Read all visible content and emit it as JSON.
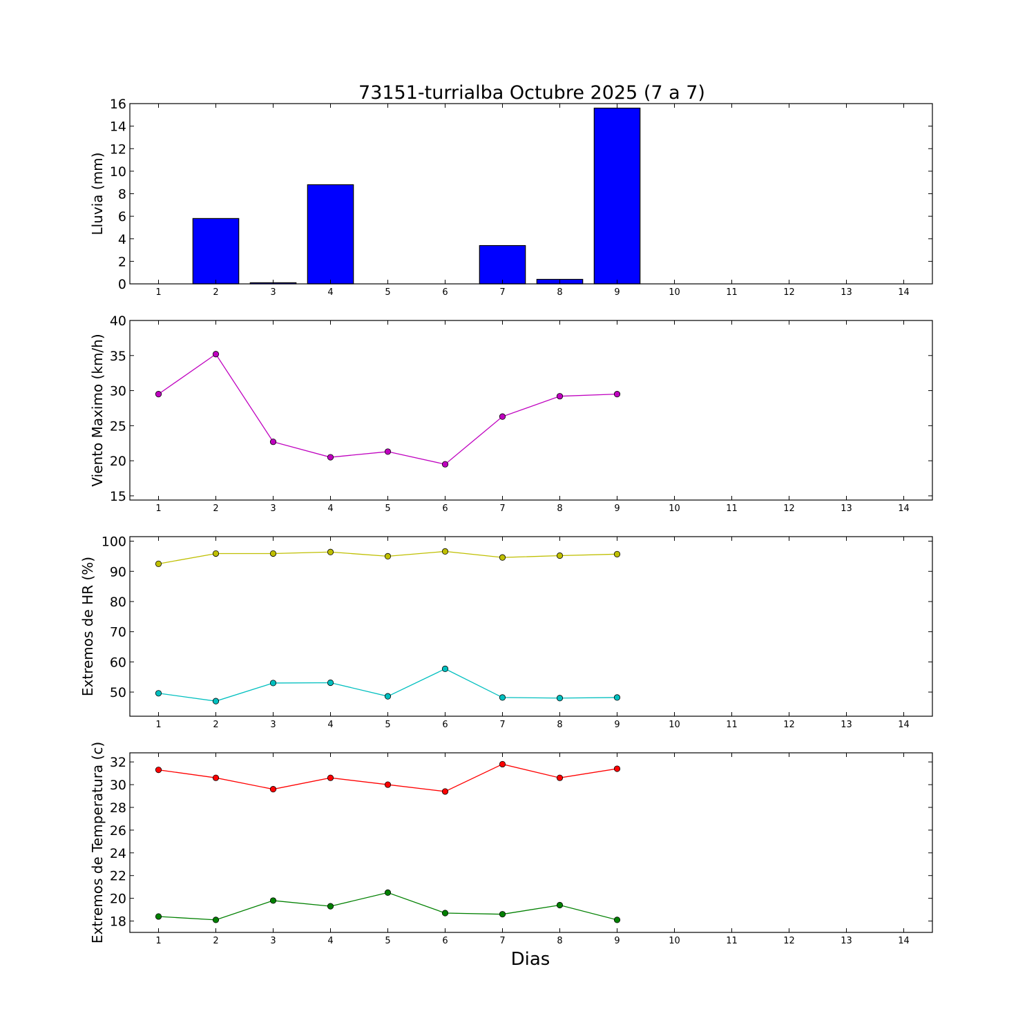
{
  "title": "73151-turrialba Octubre 2025  (7 a 7)",
  "xlabel": "Dias",
  "chart_data": [
    {
      "type": "bar",
      "ylabel": "Lluvia (mm)",
      "xlim": [
        0.5,
        14.5
      ],
      "ylim": [
        0,
        16
      ],
      "xticks": [
        1,
        2,
        3,
        4,
        5,
        6,
        7,
        8,
        9,
        10,
        11,
        12,
        13,
        14
      ],
      "yticks": [
        0,
        2,
        4,
        6,
        8,
        10,
        12,
        14,
        16
      ],
      "grid": false,
      "series": [
        {
          "color": "#0000ff",
          "x": [
            1,
            2,
            3,
            4,
            5,
            6,
            7,
            8,
            9
          ],
          "values": [
            0,
            5.8,
            0.1,
            8.8,
            0,
            0,
            3.4,
            0.4,
            15.6
          ]
        }
      ]
    },
    {
      "type": "line",
      "ylabel": "Viento Maximo (km/h)",
      "xlim": [
        0.5,
        14.5
      ],
      "ylim": [
        14.4,
        40
      ],
      "xticks": [
        1,
        2,
        3,
        4,
        5,
        6,
        7,
        8,
        9,
        10,
        11,
        12,
        13,
        14
      ],
      "yticks": [
        15,
        20,
        25,
        30,
        35,
        40
      ],
      "grid": false,
      "series": [
        {
          "color": "#bf00bf",
          "x": [
            1,
            2,
            3,
            4,
            5,
            6,
            7,
            8,
            9
          ],
          "values": [
            29.5,
            35.2,
            22.7,
            20.5,
            21.3,
            19.5,
            26.3,
            29.2,
            29.5
          ]
        }
      ]
    },
    {
      "type": "line",
      "ylabel": "Extremos de HR (%)",
      "xlim": [
        0.5,
        14.5
      ],
      "ylim": [
        42,
        101.5
      ],
      "xticks": [
        1,
        2,
        3,
        4,
        5,
        6,
        7,
        8,
        9,
        10,
        11,
        12,
        13,
        14
      ],
      "yticks": [
        50,
        60,
        70,
        80,
        90,
        100
      ],
      "grid": false,
      "series": [
        {
          "color": "#bfbf00",
          "x": [
            1,
            2,
            3,
            4,
            5,
            6,
            7,
            8,
            9
          ],
          "values": [
            92.5,
            95.9,
            95.9,
            96.4,
            95.0,
            96.6,
            94.6,
            95.2,
            95.7
          ]
        },
        {
          "color": "#00bfbf",
          "x": [
            1,
            2,
            3,
            4,
            5,
            6,
            7,
            8,
            9
          ],
          "values": [
            49.6,
            47.0,
            53.0,
            53.1,
            48.6,
            57.7,
            48.2,
            48.0,
            48.2
          ]
        }
      ]
    },
    {
      "type": "line",
      "ylabel": "Extremos de Temperatura (c)",
      "xlim": [
        0.5,
        14.5
      ],
      "ylim": [
        17,
        32.8
      ],
      "xticks": [
        1,
        2,
        3,
        4,
        5,
        6,
        7,
        8,
        9,
        10,
        11,
        12,
        13,
        14
      ],
      "yticks": [
        18,
        20,
        22,
        24,
        26,
        28,
        30,
        32
      ],
      "grid": false,
      "series": [
        {
          "color": "#ff0000",
          "x": [
            1,
            2,
            3,
            4,
            5,
            6,
            7,
            8,
            9
          ],
          "values": [
            31.3,
            30.6,
            29.6,
            30.6,
            30.0,
            29.4,
            31.8,
            30.6,
            31.4
          ]
        },
        {
          "color": "#008000",
          "x": [
            1,
            2,
            3,
            4,
            5,
            6,
            7,
            8,
            9
          ],
          "values": [
            18.4,
            18.1,
            19.8,
            19.3,
            20.5,
            18.7,
            18.6,
            19.4,
            18.1
          ]
        }
      ]
    }
  ]
}
